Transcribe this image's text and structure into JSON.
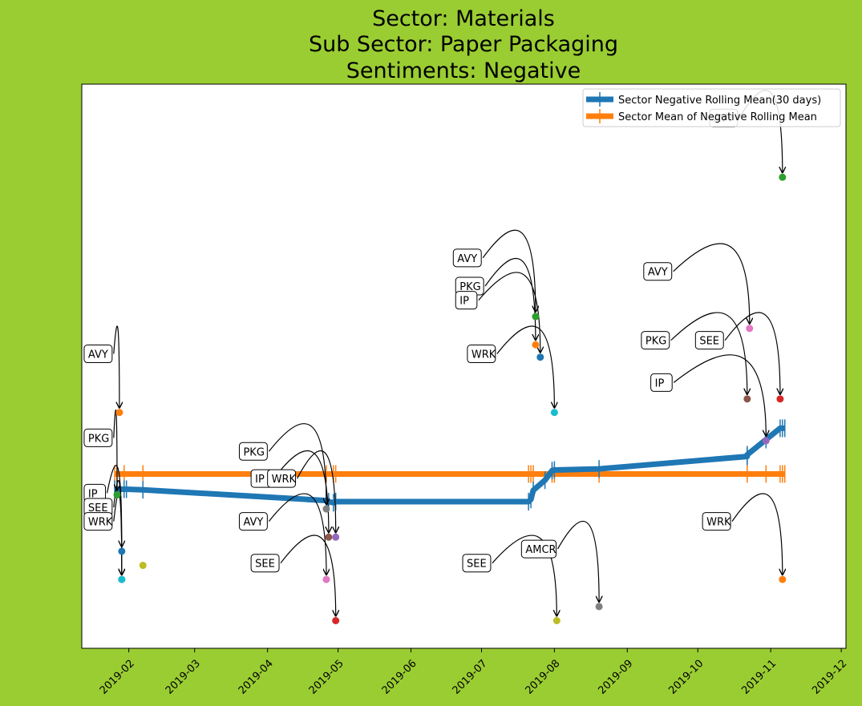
{
  "chart_data": {
    "type": "line",
    "title": [
      "Sector:  Materials",
      "Sub Sector:  Paper Packaging",
      "Sentiments:  Negative"
    ],
    "xlabel": "",
    "ylabel": "",
    "x_ticks": [
      "2019-02",
      "2019-03",
      "2019-04",
      "2019-05",
      "2019-06",
      "2019-07",
      "2019-08",
      "2019-09",
      "2019-10",
      "2019-11",
      "2019-12"
    ],
    "xlim": [
      "2019-01-12",
      "2019-12-03"
    ],
    "ylim": [
      0,
      1
    ],
    "y_ticks_shown": false,
    "legend_position": "top-right",
    "series": [
      {
        "name": "Sector Negative Rolling Mean(30 days)",
        "color": "#1f77b4",
        "marker": "|",
        "points": [
          {
            "x": "2019-01-26",
            "y": 0.282
          },
          {
            "x": "2019-01-27",
            "y": 0.282
          },
          {
            "x": "2019-01-30",
            "y": 0.282
          },
          {
            "x": "2019-01-31",
            "y": 0.282
          },
          {
            "x": "2019-02-07",
            "y": 0.281
          },
          {
            "x": "2019-04-26",
            "y": 0.262
          },
          {
            "x": "2019-04-27",
            "y": 0.26
          },
          {
            "x": "2019-04-29",
            "y": 0.258
          },
          {
            "x": "2019-04-30",
            "y": 0.26
          },
          {
            "x": "2019-07-21",
            "y": 0.26
          },
          {
            "x": "2019-07-22",
            "y": 0.264
          },
          {
            "x": "2019-07-23",
            "y": 0.28
          },
          {
            "x": "2019-07-28",
            "y": 0.298
          },
          {
            "x": "2019-07-31",
            "y": 0.315
          },
          {
            "x": "2019-08-01",
            "y": 0.316
          },
          {
            "x": "2019-08-20",
            "y": 0.318
          },
          {
            "x": "2019-10-22",
            "y": 0.34
          },
          {
            "x": "2019-10-22",
            "y": 0.343
          },
          {
            "x": "2019-10-30",
            "y": 0.37
          },
          {
            "x": "2019-11-05",
            "y": 0.39
          },
          {
            "x": "2019-11-06",
            "y": 0.39
          },
          {
            "x": "2019-11-07",
            "y": 0.39
          }
        ]
      },
      {
        "name": "Sector Mean of Negative Rolling Mean",
        "color": "#ff7f0e",
        "marker": "|",
        "points": [
          {
            "x": "2019-01-26",
            "y": 0.309
          },
          {
            "x": "2019-01-27",
            "y": 0.309
          },
          {
            "x": "2019-01-30",
            "y": 0.309
          },
          {
            "x": "2019-02-07",
            "y": 0.309
          },
          {
            "x": "2019-04-26",
            "y": 0.309
          },
          {
            "x": "2019-04-29",
            "y": 0.309
          },
          {
            "x": "2019-04-30",
            "y": 0.309
          },
          {
            "x": "2019-07-21",
            "y": 0.309
          },
          {
            "x": "2019-07-22",
            "y": 0.309
          },
          {
            "x": "2019-07-23",
            "y": 0.309
          },
          {
            "x": "2019-07-31",
            "y": 0.309
          },
          {
            "x": "2019-08-01",
            "y": 0.309
          },
          {
            "x": "2019-08-20",
            "y": 0.309
          },
          {
            "x": "2019-10-22",
            "y": 0.309
          },
          {
            "x": "2019-10-30",
            "y": 0.309
          },
          {
            "x": "2019-11-05",
            "y": 0.309
          },
          {
            "x": "2019-11-06",
            "y": 0.309
          },
          {
            "x": "2019-11-07",
            "y": 0.309
          }
        ]
      }
    ],
    "points": [
      {
        "label": "AVY",
        "x": "2019-01-28",
        "y": 0.418,
        "color": "#ff7f0e",
        "label_x": "2019-01-13",
        "label_y": 0.522
      },
      {
        "label": "PKG",
        "x": "2019-01-27",
        "y": 0.272,
        "color": "#2ca02c",
        "label_x": "2019-01-13",
        "label_y": 0.373
      },
      {
        "label": "IP",
        "x": "2019-01-29",
        "y": 0.172,
        "color": "#1f77b4",
        "label_x": "2019-01-13",
        "label_y": 0.275
      },
      {
        "label": "SEE",
        "x": "2019-01-29",
        "y": 0.122,
        "color": "#e377c2",
        "label_x": "2019-01-13",
        "label_y": 0.25
      },
      {
        "label": "WRK",
        "x": "2019-01-29",
        "y": 0.122,
        "color": "#17becf",
        "label_x": "2019-01-13",
        "label_y": 0.225
      },
      {
        "label": "",
        "x": "2019-02-07",
        "y": 0.147,
        "color": "#bcbd22",
        "label_x": "",
        "label_y": null
      },
      {
        "label": "PKG",
        "x": "2019-04-26",
        "y": 0.247,
        "color": "#7f7f7f",
        "label_x": "2019-03-20",
        "label_y": 0.349
      },
      {
        "label": "IP",
        "x": "2019-04-27",
        "y": 0.197,
        "color": "#8c564b",
        "label_x": "2019-03-25",
        "label_y": 0.301
      },
      {
        "label": "WRK",
        "x": "2019-04-30",
        "y": 0.197,
        "color": "#9467bd",
        "label_x": "2019-04-01",
        "label_y": 0.301
      },
      {
        "label": "AVY",
        "x": "2019-04-26",
        "y": 0.122,
        "color": "#e377c2",
        "label_x": "2019-03-20",
        "label_y": 0.225
      },
      {
        "label": "SEE",
        "x": "2019-04-30",
        "y": 0.049,
        "color": "#d62728",
        "label_x": "2019-03-25",
        "label_y": 0.151
      },
      {
        "label": "AVY",
        "x": "2019-07-24",
        "y": 0.588,
        "color": "#2ca02c",
        "label_x": "2019-06-19",
        "label_y": 0.692
      },
      {
        "label": "PKG",
        "x": "2019-07-24",
        "y": 0.538,
        "color": "#ff7f0e",
        "label_x": "2019-06-20",
        "label_y": 0.642
      },
      {
        "label": "IP",
        "x": "2019-07-26",
        "y": 0.516,
        "color": "#1f77b4",
        "label_x": "2019-06-20",
        "label_y": 0.617
      },
      {
        "label": "WRK",
        "x": "2019-08-01",
        "y": 0.418,
        "color": "#17becf",
        "label_x": "2019-06-25",
        "label_y": 0.522
      },
      {
        "label": "SEE",
        "x": "2019-08-02",
        "y": 0.049,
        "color": "#bcbd22",
        "label_x": "2019-06-23",
        "label_y": 0.151
      },
      {
        "label": "AMCR",
        "x": "2019-08-20",
        "y": 0.074,
        "color": "#7f7f7f",
        "label_x": "2019-07-18",
        "label_y": 0.176
      },
      {
        "label": "AVY",
        "x": "2019-11-06",
        "y": 0.835,
        "color": "#2ca02c",
        "label_x": "2019-10-06",
        "label_y": 0.94
      },
      {
        "label": "AVY",
        "x": "2019-10-23",
        "y": 0.567,
        "color": "#e377c2",
        "label_x": "2019-09-08",
        "label_y": 0.668
      },
      {
        "label": "PKG",
        "x": "2019-10-22",
        "y": 0.442,
        "color": "#8c564b",
        "label_x": "2019-09-07",
        "label_y": 0.546
      },
      {
        "label": "SEE",
        "x": "2019-11-05",
        "y": 0.442,
        "color": "#d62728",
        "label_x": "2019-09-30",
        "label_y": 0.546
      },
      {
        "label": "IP",
        "x": "2019-10-30",
        "y": 0.368,
        "color": "#9467bd",
        "label_x": "2019-09-11",
        "label_y": 0.471
      },
      {
        "label": "WRK",
        "x": "2019-11-06",
        "y": 0.122,
        "color": "#ff7f0e",
        "label_x": "2019-10-03",
        "label_y": 0.225
      }
    ]
  }
}
